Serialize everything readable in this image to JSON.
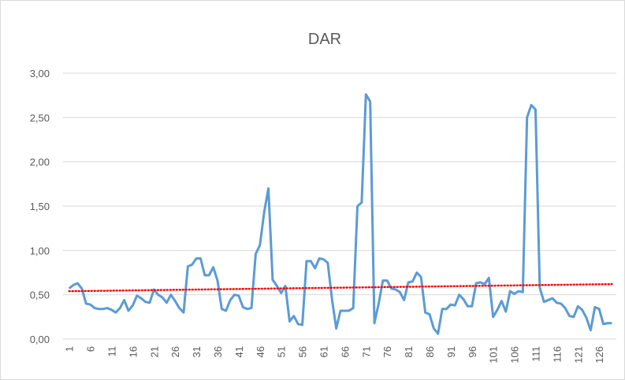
{
  "chart_data": {
    "type": "line",
    "title": "DAR",
    "categories": [
      "1",
      null,
      null,
      null,
      null,
      "6",
      null,
      null,
      null,
      null,
      "11",
      null,
      null,
      null,
      null,
      "16",
      null,
      null,
      null,
      null,
      "21",
      null,
      null,
      null,
      null,
      "26",
      null,
      null,
      null,
      null,
      "31",
      null,
      null,
      null,
      null,
      "36",
      null,
      null,
      null,
      null,
      "41",
      null,
      null,
      null,
      null,
      "46",
      null,
      null,
      null,
      null,
      "51",
      null,
      null,
      null,
      null,
      "56",
      null,
      null,
      null,
      null,
      "61",
      null,
      null,
      null,
      null,
      "66",
      null,
      null,
      null,
      null,
      "71",
      null,
      null,
      null,
      null,
      "76",
      null,
      null,
      null,
      null,
      "81",
      null,
      null,
      null,
      null,
      "86",
      null,
      null,
      null,
      null,
      "91",
      null,
      null,
      null,
      null,
      "96",
      null,
      null,
      null,
      null,
      "101",
      null,
      null,
      null,
      null,
      "106",
      null,
      null,
      null,
      null,
      "111",
      null,
      null,
      null,
      null,
      "116",
      null,
      null,
      null,
      null,
      "121",
      null,
      null,
      null,
      null,
      "126",
      null,
      null,
      null
    ],
    "series": [
      {
        "color": "#5b9bd5",
        "values": [
          0.57,
          0.61,
          0.63,
          0.57,
          0.4,
          0.39,
          0.35,
          0.34,
          0.34,
          0.35,
          0.33,
          0.3,
          0.35,
          0.44,
          0.32,
          0.38,
          0.49,
          0.46,
          0.42,
          0.41,
          0.56,
          0.5,
          0.47,
          0.41,
          0.5,
          0.43,
          0.35,
          0.3,
          0.82,
          0.84,
          0.91,
          0.91,
          0.72,
          0.72,
          0.81,
          0.66,
          0.34,
          0.32,
          0.44,
          0.5,
          0.49,
          0.36,
          0.34,
          0.35,
          0.96,
          1.06,
          1.43,
          1.7,
          0.67,
          0.6,
          0.52,
          0.6,
          0.2,
          0.26,
          0.17,
          0.16,
          0.88,
          0.88,
          0.8,
          0.91,
          0.9,
          0.86,
          0.45,
          0.12,
          0.32,
          0.32,
          0.32,
          0.35,
          1.5,
          1.54,
          2.76,
          2.68,
          0.18,
          0.4,
          0.66,
          0.66,
          0.57,
          0.56,
          0.53,
          0.44,
          0.64,
          0.65,
          0.75,
          0.7,
          0.3,
          0.28,
          0.12,
          0.06,
          0.34,
          0.34,
          0.39,
          0.38,
          0.5,
          0.45,
          0.37,
          0.37,
          0.63,
          0.64,
          0.62,
          0.69,
          0.25,
          0.33,
          0.43,
          0.31,
          0.54,
          0.51,
          0.54,
          0.53,
          2.5,
          2.64,
          2.59,
          0.58,
          0.42,
          0.44,
          0.46,
          0.41,
          0.4,
          0.35,
          0.26,
          0.25,
          0.37,
          0.33,
          0.24,
          0.1,
          0.36,
          0.34,
          0.17,
          0.18,
          0.18
        ]
      }
    ],
    "trendline": {
      "color": "#ff0000",
      "values": [
        0.54,
        0.62
      ]
    },
    "ylim": [
      0,
      3
    ],
    "yticks": [
      {
        "value": 0,
        "label": "0,00"
      },
      {
        "value": 0.5,
        "label": "0,50"
      },
      {
        "value": 1,
        "label": "1,00"
      },
      {
        "value": 1.5,
        "label": "1,50"
      },
      {
        "value": 2,
        "label": "2,00"
      },
      {
        "value": 2.5,
        "label": "2,50"
      },
      {
        "value": 3,
        "label": "3,00"
      }
    ],
    "grid": true
  }
}
